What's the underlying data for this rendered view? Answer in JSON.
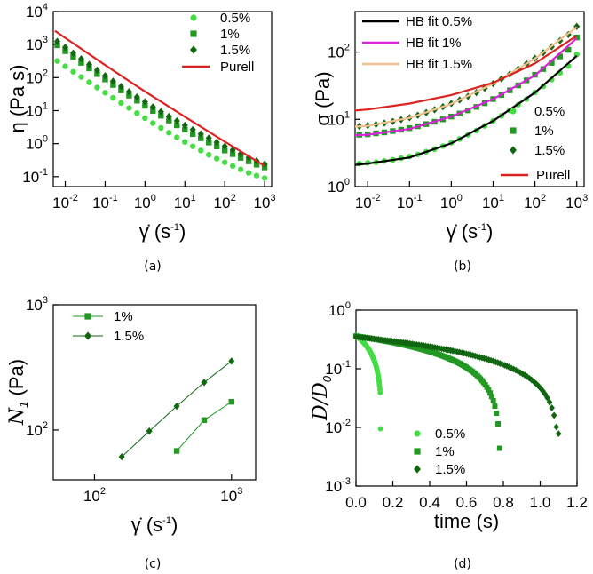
{
  "figure": {
    "captions": [
      "(a)",
      "(b)",
      "(c)",
      "(d)"
    ]
  },
  "colors": {
    "c05": "#44dd44",
    "c1": "#229922",
    "c15": "#116611",
    "purell": "#dd2222",
    "hb05": "#000000",
    "hb1": "#dd22dd",
    "hb15": "#f0c090"
  },
  "chart_data": [
    {
      "id": "a",
      "type": "scatter",
      "scale": "log-log",
      "xlabel": "γ̇ (s⁻¹)",
      "ylabel": "η (Pa s)",
      "xlim": [
        0.005,
        1500
      ],
      "ylim": [
        0.05,
        10000
      ],
      "xticks": [
        {
          "v": 0.01,
          "b": "10",
          "e": "-2"
        },
        {
          "v": 0.1,
          "b": "10",
          "e": "-1"
        },
        {
          "v": 1,
          "b": "10",
          "e": "0"
        },
        {
          "v": 10,
          "b": "10",
          "e": "1"
        },
        {
          "v": 100,
          "b": "10",
          "e": "2"
        },
        {
          "v": 1000,
          "b": "10",
          "e": "3"
        }
      ],
      "yticks": [
        {
          "v": 0.1,
          "b": "10",
          "e": "-1"
        },
        {
          "v": 1,
          "b": "10",
          "e": "0"
        },
        {
          "v": 10,
          "b": "10",
          "e": "1"
        },
        {
          "v": 100,
          "b": "10",
          "e": "2"
        },
        {
          "v": 1000,
          "b": "10",
          "e": "3"
        },
        {
          "v": 10000,
          "b": "10",
          "e": "4"
        }
      ],
      "series": [
        {
          "name": "0.5%",
          "marker": "circle",
          "color": "#44dd44",
          "x": [
            0.0063,
            0.01,
            0.0158,
            0.0251,
            0.0398,
            0.063,
            0.1,
            0.158,
            0.251,
            0.398,
            0.63,
            1,
            1.58,
            2.51,
            3.98,
            6.3,
            10,
            15.8,
            25.1,
            39.8,
            63,
            100,
            158,
            251,
            398,
            630,
            1000
          ],
          "y": [
            320,
            220,
            150,
            105,
            72,
            50,
            35,
            24.5,
            17,
            12,
            8.4,
            5.9,
            4.2,
            3.0,
            2.15,
            1.55,
            1.13,
            0.83,
            0.62,
            0.46,
            0.35,
            0.27,
            0.21,
            0.165,
            0.13,
            0.107,
            0.09
          ]
        },
        {
          "name": "1%",
          "marker": "square",
          "color": "#229922",
          "x": [
            0.0063,
            0.01,
            0.0158,
            0.0251,
            0.0398,
            0.063,
            0.1,
            0.158,
            0.251,
            0.398,
            0.63,
            1,
            1.58,
            2.51,
            3.98,
            6.3,
            10,
            15.8,
            25.1,
            39.8,
            63,
            100,
            158,
            251,
            398,
            630,
            1000
          ],
          "y": [
            950,
            630,
            420,
            280,
            190,
            128,
            88,
            60,
            41,
            28.5,
            20,
            14,
            9.8,
            7.0,
            5.0,
            3.6,
            2.65,
            1.95,
            1.45,
            1.08,
            0.82,
            0.62,
            0.48,
            0.37,
            0.29,
            0.23,
            0.19
          ]
        },
        {
          "name": "1.5%",
          "marker": "diamond",
          "color": "#116611",
          "x": [
            0.0063,
            0.01,
            0.0158,
            0.0251,
            0.0398,
            0.063,
            0.1,
            0.158,
            0.251,
            0.398,
            0.63,
            1,
            1.58,
            2.51,
            3.98,
            6.3,
            10,
            15.8,
            25.1,
            39.8,
            63,
            100,
            158,
            251,
            398,
            630,
            1000
          ],
          "y": [
            1250,
            830,
            550,
            370,
            250,
            168,
            114,
            78,
            54,
            37.5,
            26,
            18.5,
            13,
            9.3,
            6.7,
            4.9,
            3.6,
            2.65,
            1.97,
            1.47,
            1.1,
            0.83,
            0.64,
            0.49,
            0.38,
            0.3,
            0.24
          ]
        },
        {
          "name": "Purell",
          "marker": "line",
          "color": "#dd2222",
          "x": [
            0.0055,
            0.01,
            0.1,
            1,
            10,
            100,
            1000
          ],
          "y": [
            2600,
            1600,
            240,
            38,
            6.5,
            1.15,
            0.21
          ]
        }
      ],
      "legend": {
        "position": "top-right",
        "entries": [
          "0.5%",
          "1%",
          "1.5%",
          "Purell"
        ]
      }
    },
    {
      "id": "b",
      "type": "scatter",
      "scale": "log-log",
      "xlabel": "γ̇ (s⁻¹)",
      "ylabel": "σ (Pa)",
      "xlim": [
        0.005,
        1500
      ],
      "ylim": [
        1,
        400
      ],
      "xticks": [
        {
          "v": 0.01,
          "b": "10",
          "e": "-2"
        },
        {
          "v": 0.1,
          "b": "10",
          "e": "-1"
        },
        {
          "v": 1,
          "b": "10",
          "e": "0"
        },
        {
          "v": 10,
          "b": "10",
          "e": "1"
        },
        {
          "v": 100,
          "b": "10",
          "e": "2"
        },
        {
          "v": 1000,
          "b": "10",
          "e": "3"
        }
      ],
      "yticks": [
        {
          "v": 1,
          "b": "10",
          "e": "0"
        },
        {
          "v": 10,
          "b": "10",
          "e": "1"
        },
        {
          "v": 100,
          "b": "10",
          "e": "2"
        }
      ],
      "series": [
        {
          "name": "0.5%",
          "marker": "circle",
          "color": "#44dd44",
          "x": [
            0.0063,
            0.01,
            0.0158,
            0.0251,
            0.0398,
            0.063,
            0.1,
            0.158,
            0.251,
            0.398,
            0.63,
            1,
            1.58,
            2.51,
            3.98,
            6.3,
            10,
            15.8,
            25.1,
            39.8,
            63,
            100,
            158,
            251,
            398,
            630,
            1000
          ],
          "y": [
            2.2,
            2.25,
            2.3,
            2.4,
            2.5,
            2.65,
            2.8,
            3.0,
            3.3,
            3.6,
            4.0,
            4.5,
            5.1,
            5.9,
            6.8,
            8.0,
            9.5,
            11.3,
            13.6,
            16.5,
            20,
            25,
            31,
            39,
            49,
            62,
            92
          ]
        },
        {
          "name": "1%",
          "marker": "square",
          "color": "#229922",
          "x": [
            0.0063,
            0.01,
            0.0158,
            0.0251,
            0.0398,
            0.063,
            0.1,
            0.158,
            0.251,
            0.398,
            0.63,
            1,
            1.58,
            2.51,
            3.98,
            6.3,
            10,
            15.8,
            25.1,
            39.8,
            63,
            100,
            158,
            251,
            398,
            630,
            1000
          ],
          "y": [
            5.9,
            6.0,
            6.2,
            6.4,
            6.7,
            7.0,
            7.4,
            7.9,
            8.5,
            9.2,
            10.0,
            11.0,
            12.2,
            13.6,
            15.3,
            17.4,
            20,
            23,
            27,
            32,
            38,
            46,
            56,
            69,
            86,
            108,
            165
          ]
        },
        {
          "name": "1.5%",
          "marker": "diamond",
          "color": "#116611",
          "x": [
            0.0063,
            0.01,
            0.0158,
            0.0251,
            0.0398,
            0.063,
            0.1,
            0.158,
            0.251,
            0.398,
            0.63,
            1,
            1.58,
            2.51,
            3.98,
            6.3,
            10,
            15.8,
            25.1,
            39.8,
            63,
            100,
            158,
            251,
            398,
            630,
            1000
          ],
          "y": [
            7.9,
            8.1,
            8.4,
            8.8,
            9.3,
            9.9,
            10.6,
            11.5,
            12.6,
            13.9,
            15.4,
            17.2,
            19.4,
            22,
            25,
            29,
            34,
            40,
            47,
            56,
            67,
            81,
            98,
            120,
            148,
            182,
            240
          ]
        },
        {
          "name": "HB fit 0.5%",
          "marker": "line",
          "color": "#000000",
          "x": [
            0.005,
            0.01,
            0.1,
            1,
            10,
            100,
            1000
          ],
          "y": [
            2.1,
            2.2,
            2.7,
            4.4,
            9.5,
            25,
            88
          ]
        },
        {
          "name": "HB fit 1%",
          "marker": "line",
          "color": "#dd22dd",
          "x": [
            0.005,
            0.01,
            0.1,
            1,
            10,
            100,
            1000
          ],
          "y": [
            5.8,
            5.9,
            7.2,
            11,
            20,
            45,
            160
          ]
        },
        {
          "name": "HB fit 1.5%",
          "marker": "line",
          "color": "#f0c090",
          "x": [
            0.005,
            0.01,
            0.1,
            1,
            10,
            100,
            1000
          ],
          "y": [
            7.8,
            8.0,
            10.5,
            17,
            34,
            80,
            235
          ]
        },
        {
          "name": "Purell",
          "marker": "line",
          "color": "#dd2222",
          "x": [
            0.005,
            0.01,
            0.1,
            1,
            10,
            100,
            1000
          ],
          "y": [
            13.5,
            14,
            17.2,
            23,
            35,
            68,
            175
          ]
        }
      ],
      "legend": {
        "position": "top-left and bottom-right",
        "entries": [
          "HB fit 0.5%",
          "HB fit 1%",
          "HB fit 1.5%",
          "0.5%",
          "1%",
          "1.5%",
          "Purell"
        ]
      }
    },
    {
      "id": "c",
      "type": "line",
      "scale": "log-log",
      "xlabel": "γ̇ (s⁻¹)",
      "ylabel": "N1 (Pa)",
      "xlim": [
        50,
        1500
      ],
      "ylim": [
        40,
        1000
      ],
      "xticks": [
        {
          "v": 100,
          "b": "10",
          "e": "2"
        },
        {
          "v": 1000,
          "b": "10",
          "e": "3"
        }
      ],
      "yticks": [
        {
          "v": 100,
          "b": "10",
          "e": "2"
        },
        {
          "v": 1000,
          "b": "10",
          "e": "3"
        }
      ],
      "series": [
        {
          "name": "1%",
          "marker": "square",
          "color": "#229922",
          "x": [
            398,
            631,
            1000
          ],
          "y": [
            68,
            120,
            168
          ]
        },
        {
          "name": "1.5%",
          "marker": "diamond",
          "color": "#116611",
          "x": [
            158,
            251,
            398,
            631,
            1000
          ],
          "y": [
            61,
            98,
            155,
            240,
            355
          ]
        }
      ],
      "legend": {
        "position": "top-left",
        "entries": [
          "1%",
          "1.5%"
        ]
      }
    },
    {
      "id": "d",
      "type": "scatter",
      "scale": "linear-log",
      "xlabel": "time (s)",
      "ylabel": "D/D0",
      "xlim": [
        0,
        1.2
      ],
      "ylim": [
        0.001,
        1
      ],
      "xticks": [
        {
          "v": 0,
          "b": "0.0",
          "e": ""
        },
        {
          "v": 0.2,
          "b": "0.2",
          "e": ""
        },
        {
          "v": 0.4,
          "b": "0.4",
          "e": ""
        },
        {
          "v": 0.6,
          "b": "0.6",
          "e": ""
        },
        {
          "v": 0.8,
          "b": "0.8",
          "e": ""
        },
        {
          "v": 1.0,
          "b": "1.0",
          "e": ""
        },
        {
          "v": 1.2,
          "b": "1.2",
          "e": ""
        }
      ],
      "yticks": [
        {
          "v": 0.001,
          "b": "10",
          "e": "-3"
        },
        {
          "v": 0.01,
          "b": "10",
          "e": "-2"
        },
        {
          "v": 0.1,
          "b": "10",
          "e": "-1"
        },
        {
          "v": 1,
          "b": "10",
          "e": "0"
        }
      ],
      "series": [
        {
          "name": "0.5%",
          "marker": "circle",
          "color": "#44dd44",
          "tc": 0.14,
          "t_end": 0.133,
          "y_end": 0.0095,
          "d0": 0.37,
          "a": 1.0,
          "p": 0.8
        },
        {
          "name": "1%",
          "marker": "square",
          "color": "#229922",
          "tc": 0.785,
          "t_end": 0.78,
          "y_end": 0.0044,
          "d0": 0.36,
          "a": 1.0,
          "p": 0.85
        },
        {
          "name": "1.5%",
          "marker": "diamond",
          "color": "#116611",
          "tc": 1.105,
          "t_end": 1.1,
          "y_end": 0.0078,
          "d0": 0.35,
          "a": 1.0,
          "p": 0.85
        }
      ],
      "legend": {
        "position": "bottom-center",
        "entries": [
          "0.5%",
          "1%",
          "1.5%"
        ]
      }
    }
  ]
}
